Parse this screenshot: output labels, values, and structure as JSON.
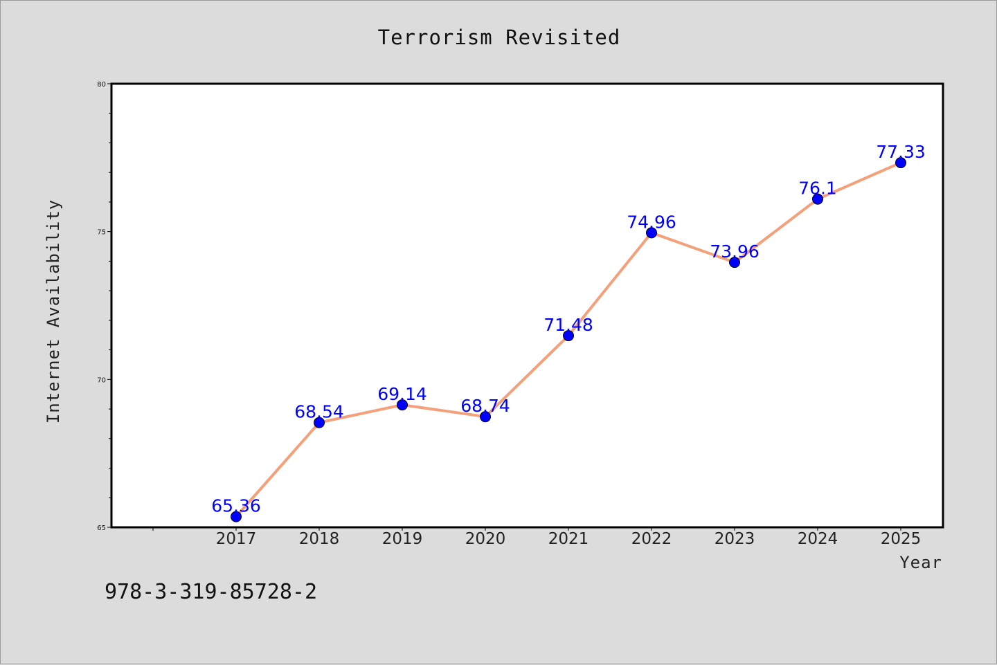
{
  "chart_data": {
    "type": "line",
    "title": "Terrorism Revisited",
    "xlabel": "Year",
    "ylabel": "Internet Availability",
    "categories": [
      "2017",
      "2018",
      "2019",
      "2020",
      "2021",
      "2022",
      "2023",
      "2024",
      "2025"
    ],
    "series": [
      {
        "values": [
          65.36,
          68.54,
          69.14,
          68.74,
          71.48,
          74.96,
          73.96,
          76.1,
          77.33
        ],
        "labels": [
          "65.36",
          "68.54",
          "69.14",
          "68.74",
          "71.48",
          "74.96",
          "73.96",
          "76.1",
          "77.33"
        ],
        "line_color": "#f4a07a",
        "marker_color": "#0000ff"
      }
    ],
    "ylim": [
      65,
      80
    ],
    "yticks": [
      "65",
      "70",
      "75",
      "80"
    ],
    "grid": false,
    "label_color": "#0000ff"
  },
  "footer": {
    "isbn": "978-3-319-85728-2"
  },
  "colors": {
    "background": "#dcdcdc",
    "plot_area": "#ffffff",
    "axis": "#000000"
  }
}
